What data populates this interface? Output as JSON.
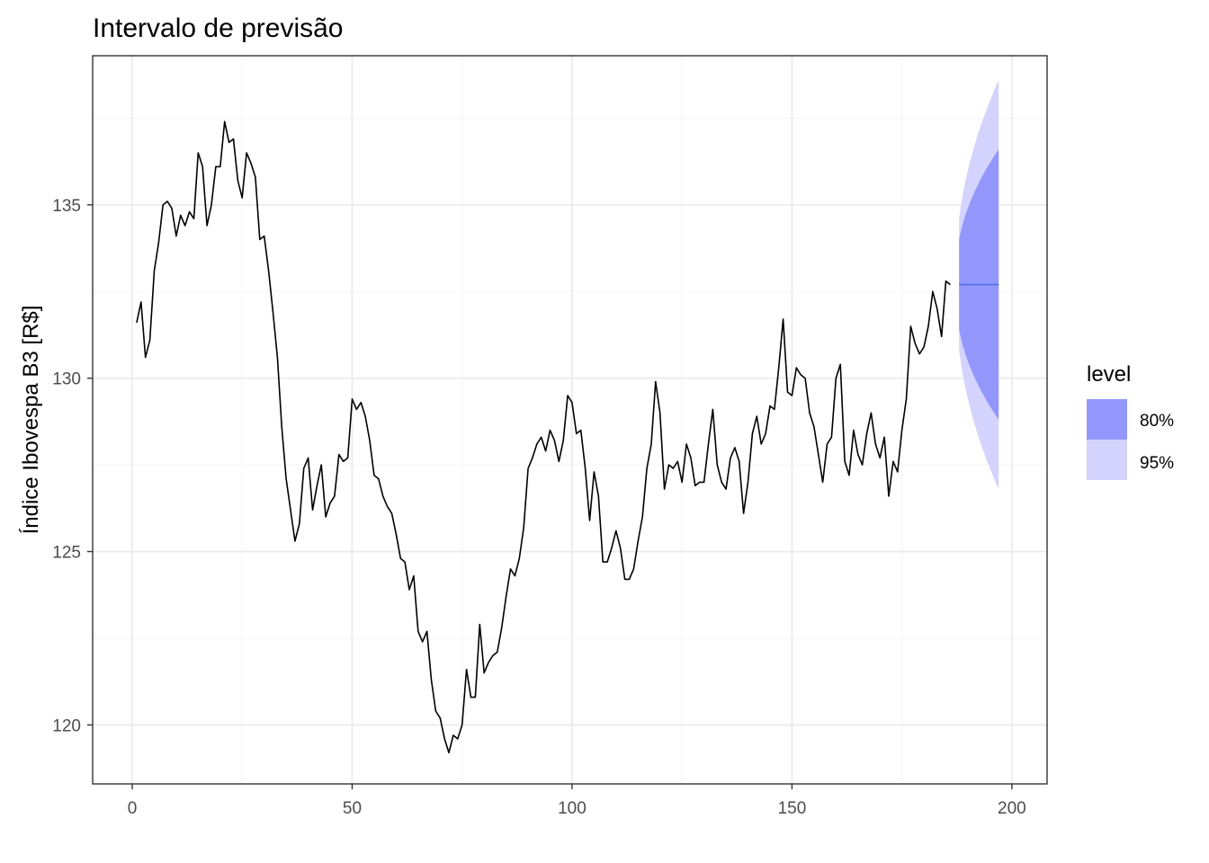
{
  "chart_data": {
    "type": "line",
    "title": "Intervalo de previsão",
    "xlabel": "",
    "ylabel": "Índice Ibovespa B3 [R$]",
    "xlim": [
      -9,
      208
    ],
    "ylim": [
      118.3,
      139.3
    ],
    "x_ticks": [
      0,
      50,
      100,
      150,
      200
    ],
    "y_ticks": [
      120,
      125,
      130,
      135
    ],
    "x_tick_labels": [
      "0",
      "50",
      "100",
      "150",
      "200"
    ],
    "y_tick_labels": [
      "120",
      "125",
      "130",
      "135"
    ],
    "grid": true,
    "legend": {
      "title": "level",
      "placement": "right",
      "entries": [
        {
          "label": "80%",
          "color": "#9397fb"
        },
        {
          "label": "95%",
          "color": "#d3d3fd"
        }
      ]
    },
    "series": [
      {
        "type": "line",
        "color": "#000000",
        "x_start": 1,
        "values": [
          131.6,
          132.2,
          130.6,
          131.1,
          133.1,
          133.9,
          135.0,
          135.1,
          134.9,
          134.1,
          134.7,
          134.4,
          134.8,
          134.6,
          136.5,
          136.1,
          134.4,
          135.0,
          136.1,
          136.1,
          137.4,
          136.8,
          136.9,
          135.7,
          135.2,
          136.5,
          136.2,
          135.8,
          134.0,
          134.1,
          133.1,
          131.9,
          130.6,
          128.6,
          127.1,
          126.2,
          125.3,
          125.8,
          127.4,
          127.7,
          126.2,
          126.9,
          127.5,
          126.0,
          126.4,
          126.6,
          127.8,
          127.6,
          127.7,
          129.4,
          129.1,
          129.3,
          128.9,
          128.2,
          127.2,
          127.1,
          126.6,
          126.3,
          126.1,
          125.5,
          124.8,
          124.7,
          123.9,
          124.3,
          122.7,
          122.4,
          122.7,
          121.3,
          120.4,
          120.2,
          119.6,
          119.2,
          119.7,
          119.6,
          120.0,
          121.6,
          120.8,
          120.8,
          122.9,
          121.5,
          121.8,
          122.0,
          122.1,
          122.8,
          123.7,
          124.5,
          124.3,
          124.8,
          125.7,
          127.4,
          127.7,
          128.1,
          128.3,
          127.9,
          128.5,
          128.2,
          127.6,
          128.2,
          129.5,
          129.3,
          128.4,
          128.5,
          127.4,
          125.9,
          127.3,
          126.6,
          124.7,
          124.7,
          125.1,
          125.6,
          125.1,
          124.2,
          124.2,
          124.5,
          125.3,
          126.0,
          127.4,
          128.1,
          129.9,
          129.0,
          126.8,
          127.5,
          127.4,
          127.6,
          127.0,
          128.1,
          127.7,
          126.9,
          127.0,
          127.0,
          128.1,
          129.1,
          127.5,
          127.0,
          126.8,
          127.7,
          128.0,
          127.6,
          126.1,
          127.0,
          128.4,
          128.9,
          128.1,
          128.4,
          129.2,
          129.1,
          130.3,
          131.7,
          129.6,
          129.5,
          130.3,
          130.1,
          130.0,
          129.0,
          128.6,
          127.8,
          127.0,
          128.1,
          128.3,
          130.0,
          130.4,
          127.6,
          127.2,
          128.5,
          127.8,
          127.5,
          128.4,
          129.0,
          128.1,
          127.7,
          128.3,
          126.6,
          127.6,
          127.3,
          128.5,
          129.4,
          131.5,
          131.0,
          130.7,
          130.9,
          131.5,
          132.5,
          132.0,
          131.2,
          132.8,
          132.7
        ]
      },
      {
        "type": "forecast",
        "name": "",
        "x": [
          188,
          197
        ],
        "mean": 132.7,
        "band_80": {
          "start": [
            131.4,
            134.0
          ],
          "end": [
            128.8,
            136.6
          ]
        },
        "band_95": {
          "start": [
            130.8,
            134.6
          ],
          "end": [
            126.8,
            138.6
          ]
        },
        "mean_color": "#4f6ff0"
      }
    ]
  },
  "colors": {
    "grid_major": "#ebebeb",
    "grid_minor": "#f5f5f5",
    "panel_border": "#333333",
    "line": "#000000",
    "band_80": "#9397fb",
    "band_95": "#d3d3fd",
    "mean": "#4f6ff0"
  }
}
